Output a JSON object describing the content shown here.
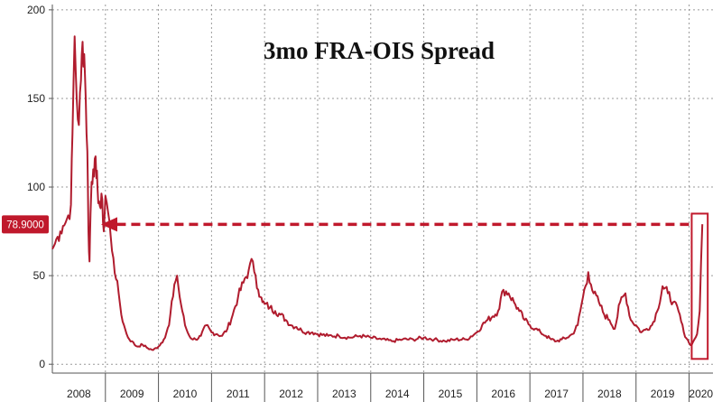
{
  "chart_data": {
    "type": "line",
    "title": "3mo FRA-OIS Spread",
    "xlabel": "",
    "ylabel": "",
    "xlim": [
      2008.0,
      2020.45
    ],
    "ylim": [
      -5,
      203
    ],
    "y_ticks": [
      0,
      50,
      100,
      150,
      200
    ],
    "x_ticks": [
      "2008",
      "2009",
      "2010",
      "2011",
      "2012",
      "2013",
      "2014",
      "2015",
      "2016",
      "2017",
      "2018",
      "2019",
      "2020"
    ],
    "grid": true,
    "line_color": "#b01c2e",
    "callout": {
      "label": "78.9000",
      "value": 78.9,
      "color": "#c0192c"
    },
    "series": [
      {
        "x": [
          2008.0,
          2008.05,
          2008.1,
          2008.15,
          2008.2,
          2008.25,
          2008.3,
          2008.35,
          2008.38,
          2008.42,
          2008.46,
          2008.5,
          2008.54,
          2008.57,
          2008.6,
          2008.63,
          2008.66,
          2008.68,
          2008.7,
          2008.72,
          2008.74,
          2008.77,
          2008.8,
          2008.83,
          2008.85,
          2008.88,
          2008.91,
          2008.94,
          2008.97,
          2009.0,
          2009.05,
          2009.1,
          2009.15,
          2009.2,
          2009.25,
          2009.3,
          2009.35,
          2009.4,
          2009.45,
          2009.5,
          2009.55,
          2009.6,
          2009.7,
          2009.8,
          2009.9,
          2010.0,
          2010.1,
          2010.2,
          2010.3,
          2010.35,
          2010.4,
          2010.45,
          2010.5,
          2010.55,
          2010.6,
          2010.7,
          2010.8,
          2010.9,
          2011.0,
          2011.1,
          2011.2,
          2011.3,
          2011.4,
          2011.5,
          2011.6,
          2011.7,
          2011.78,
          2011.83,
          2011.88,
          2011.92,
          2011.96,
          2012.0,
          2012.1,
          2012.2,
          2012.3,
          2012.4,
          2012.5,
          2012.6,
          2012.7,
          2012.8,
          2012.9,
          2013.0,
          2013.2,
          2013.4,
          2013.6,
          2013.8,
          2014.0,
          2014.2,
          2014.4,
          2014.6,
          2014.8,
          2015.0,
          2015.2,
          2015.4,
          2015.6,
          2015.8,
          2016.0,
          2016.1,
          2016.2,
          2016.3,
          2016.4,
          2016.5,
          2016.6,
          2016.7,
          2016.8,
          2016.9,
          2017.0,
          2017.1,
          2017.2,
          2017.3,
          2017.4,
          2017.5,
          2017.6,
          2017.7,
          2017.8,
          2017.9,
          2018.0,
          2018.1,
          2018.15,
          2018.2,
          2018.3,
          2018.4,
          2018.5,
          2018.6,
          2018.7,
          2018.8,
          2018.9,
          2019.0,
          2019.1,
          2019.2,
          2019.3,
          2019.4,
          2019.5,
          2019.6,
          2019.7,
          2019.8,
          2019.9,
          2020.0,
          2020.05,
          2020.1,
          2020.15,
          2020.2,
          2020.25
        ],
        "y": [
          65,
          68,
          72,
          75,
          78,
          80,
          84,
          90,
          130,
          185,
          150,
          135,
          160,
          182,
          175,
          150,
          120,
          75,
          58,
          85,
          103,
          110,
          116,
          105,
          100,
          92,
          88,
          93,
          75,
          95,
          86,
          72,
          60,
          48,
          40,
          28,
          22,
          17,
          14,
          13,
          11,
          10,
          11,
          9,
          8,
          10,
          14,
          22,
          45,
          50,
          38,
          30,
          22,
          18,
          15,
          14,
          16,
          22,
          18,
          17,
          16,
          20,
          28,
          38,
          46,
          53,
          58,
          50,
          42,
          38,
          35,
          34,
          32,
          30,
          28,
          25,
          22,
          21,
          19,
          18,
          18,
          17,
          16,
          16,
          15,
          16,
          15,
          14,
          13,
          14,
          14,
          15,
          14,
          13,
          14,
          14,
          18,
          22,
          25,
          27,
          30,
          42,
          40,
          35,
          30,
          25,
          22,
          20,
          18,
          16,
          14,
          13,
          14,
          15,
          17,
          22,
          38,
          52,
          45,
          40,
          35,
          28,
          25,
          20,
          35,
          40,
          25,
          22,
          18,
          20,
          22,
          30,
          44,
          40,
          35,
          30,
          18,
          12,
          11,
          14,
          17,
          30,
          79
        ]
      }
    ]
  }
}
